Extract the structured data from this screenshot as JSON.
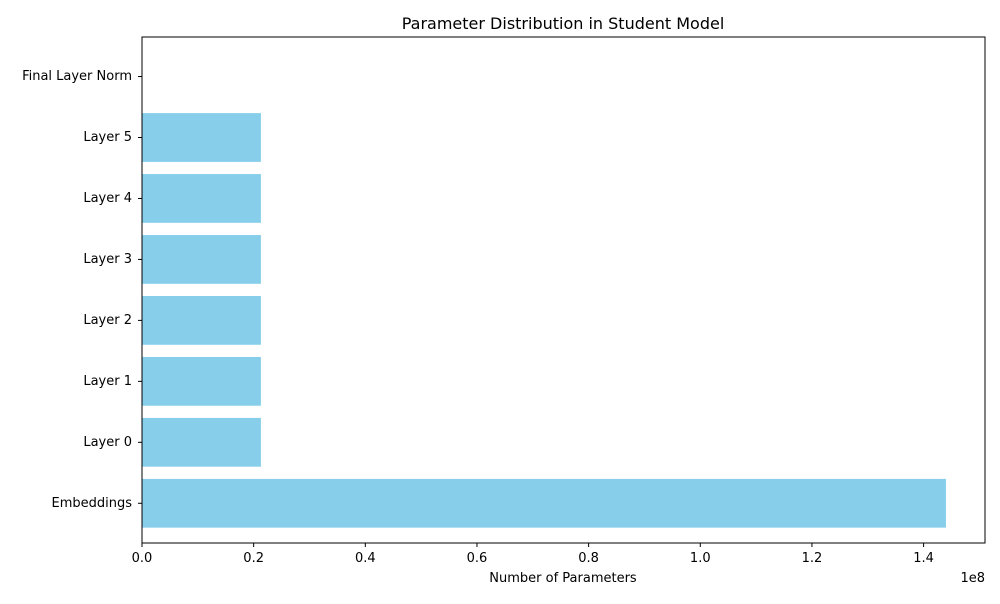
{
  "chart_data": {
    "type": "bar",
    "orientation": "horizontal",
    "title": "Parameter Distribution in Student Model",
    "xlabel": "Number of Parameters",
    "ylabel": "",
    "x_offset_label": "1e8",
    "categories": [
      "Embeddings",
      "Layer 0",
      "Layer 1",
      "Layer 2",
      "Layer 3",
      "Layer 4",
      "Layer 5",
      "Final Layer Norm"
    ],
    "values": [
      144000000,
      21300000,
      21300000,
      21300000,
      21300000,
      21300000,
      21300000,
      1536
    ],
    "xlim": [
      0,
      151000000
    ],
    "x_ticks": [
      0,
      20000000,
      40000000,
      60000000,
      80000000,
      100000000,
      120000000,
      140000000
    ],
    "x_tick_labels": [
      "0.0",
      "0.2",
      "0.4",
      "0.6",
      "0.8",
      "1.0",
      "1.2",
      "1.4"
    ],
    "bar_color": "#87CEEB",
    "grid": false,
    "legend": "none"
  }
}
